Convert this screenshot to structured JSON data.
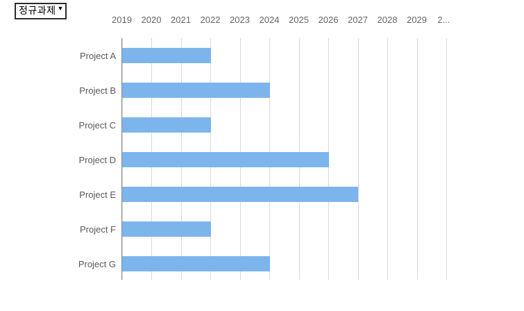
{
  "dropdown": {
    "label": "정규과제",
    "caret": "▼"
  },
  "chart_data": {
    "type": "bar",
    "orientation": "horizontal",
    "title": "",
    "xlabel": "",
    "ylabel": "",
    "axis_position": "top",
    "grid": true,
    "bar_color": "#7cb5ec",
    "gridline_color": "#d9d9d9",
    "axis_line_color": "#8a8a8a",
    "xlim": [
      2019,
      2030
    ],
    "x_ticks": [
      2019,
      2020,
      2021,
      2022,
      2023,
      2024,
      2025,
      2026,
      2027,
      2028,
      2029,
      2030
    ],
    "x_tick_labels": [
      "2019",
      "2020",
      "2021",
      "2022",
      "2023",
      "2024",
      "2025",
      "2026",
      "2027",
      "2028",
      "2029",
      "2..."
    ],
    "categories": [
      "Project A",
      "Project B",
      "Project C",
      "Project D",
      "Project E",
      "Project F",
      "Project G"
    ],
    "bars": [
      {
        "label": "Project A",
        "start": 2019,
        "end": 2022
      },
      {
        "label": "Project B",
        "start": 2019,
        "end": 2024
      },
      {
        "label": "Project C",
        "start": 2019,
        "end": 2022
      },
      {
        "label": "Project D",
        "start": 2019,
        "end": 2026
      },
      {
        "label": "Project E",
        "start": 2019,
        "end": 2027
      },
      {
        "label": "Project F",
        "start": 2019,
        "end": 2022
      },
      {
        "label": "Project G",
        "start": 2019,
        "end": 2024
      }
    ]
  }
}
